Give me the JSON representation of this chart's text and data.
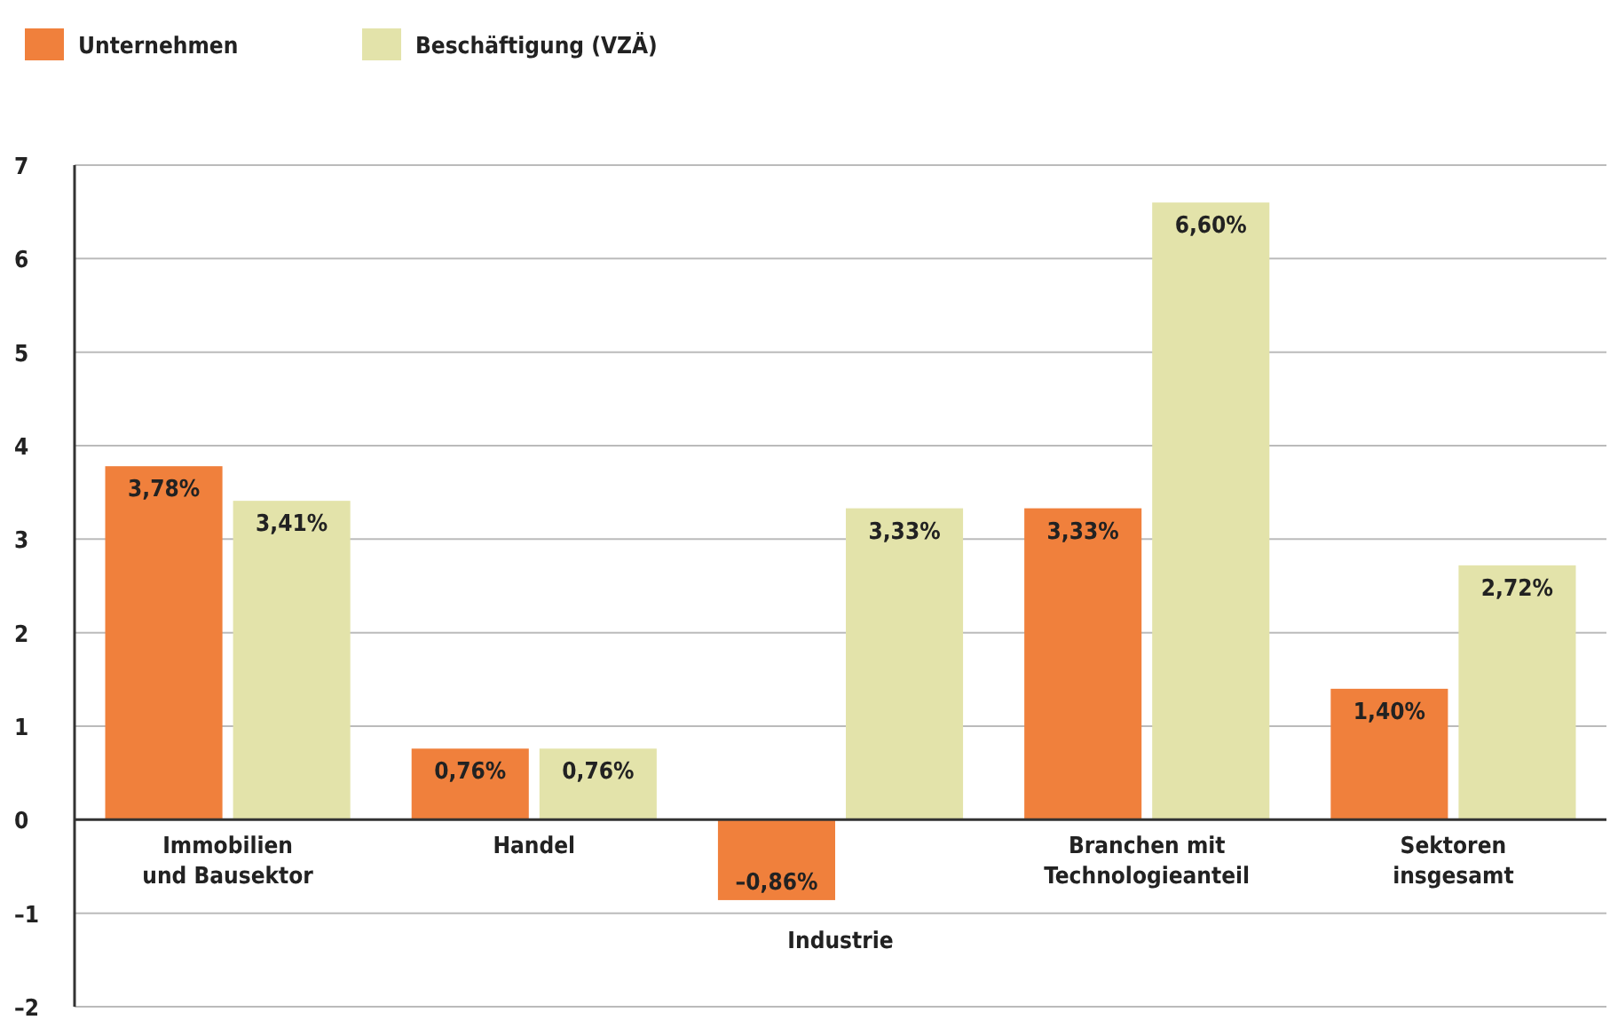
{
  "chart_data": {
    "type": "bar",
    "categories": [
      "Immobilien\nund Bausektor",
      "Handel",
      "Industrie",
      "Branchen mit\nTechnologieanteil",
      "Sektoren\ninsgesamt"
    ],
    "series": [
      {
        "name": "Unternehmen",
        "color": "#f0803c",
        "values": [
          3.78,
          0.76,
          -0.86,
          3.33,
          1.4
        ],
        "value_labels": [
          "3,78%",
          "0,76%",
          "–0,86%",
          "3,33%",
          "1,40%"
        ]
      },
      {
        "name": "Beschäftigung (VZÄ)",
        "color": "#e3e3aa",
        "values": [
          3.41,
          0.76,
          3.33,
          6.6,
          2.72
        ],
        "value_labels": [
          "3,41%",
          "0,76%",
          "3,33%",
          "6,60%",
          "2,72%"
        ]
      }
    ],
    "ylim": [
      -2,
      7
    ],
    "yticks": [
      {
        "value": -2,
        "label": "–2"
      },
      {
        "value": -1,
        "label": "–1"
      },
      0,
      1,
      2,
      3,
      4,
      5,
      6,
      7
    ],
    "grid": "y",
    "legend": "top left"
  }
}
